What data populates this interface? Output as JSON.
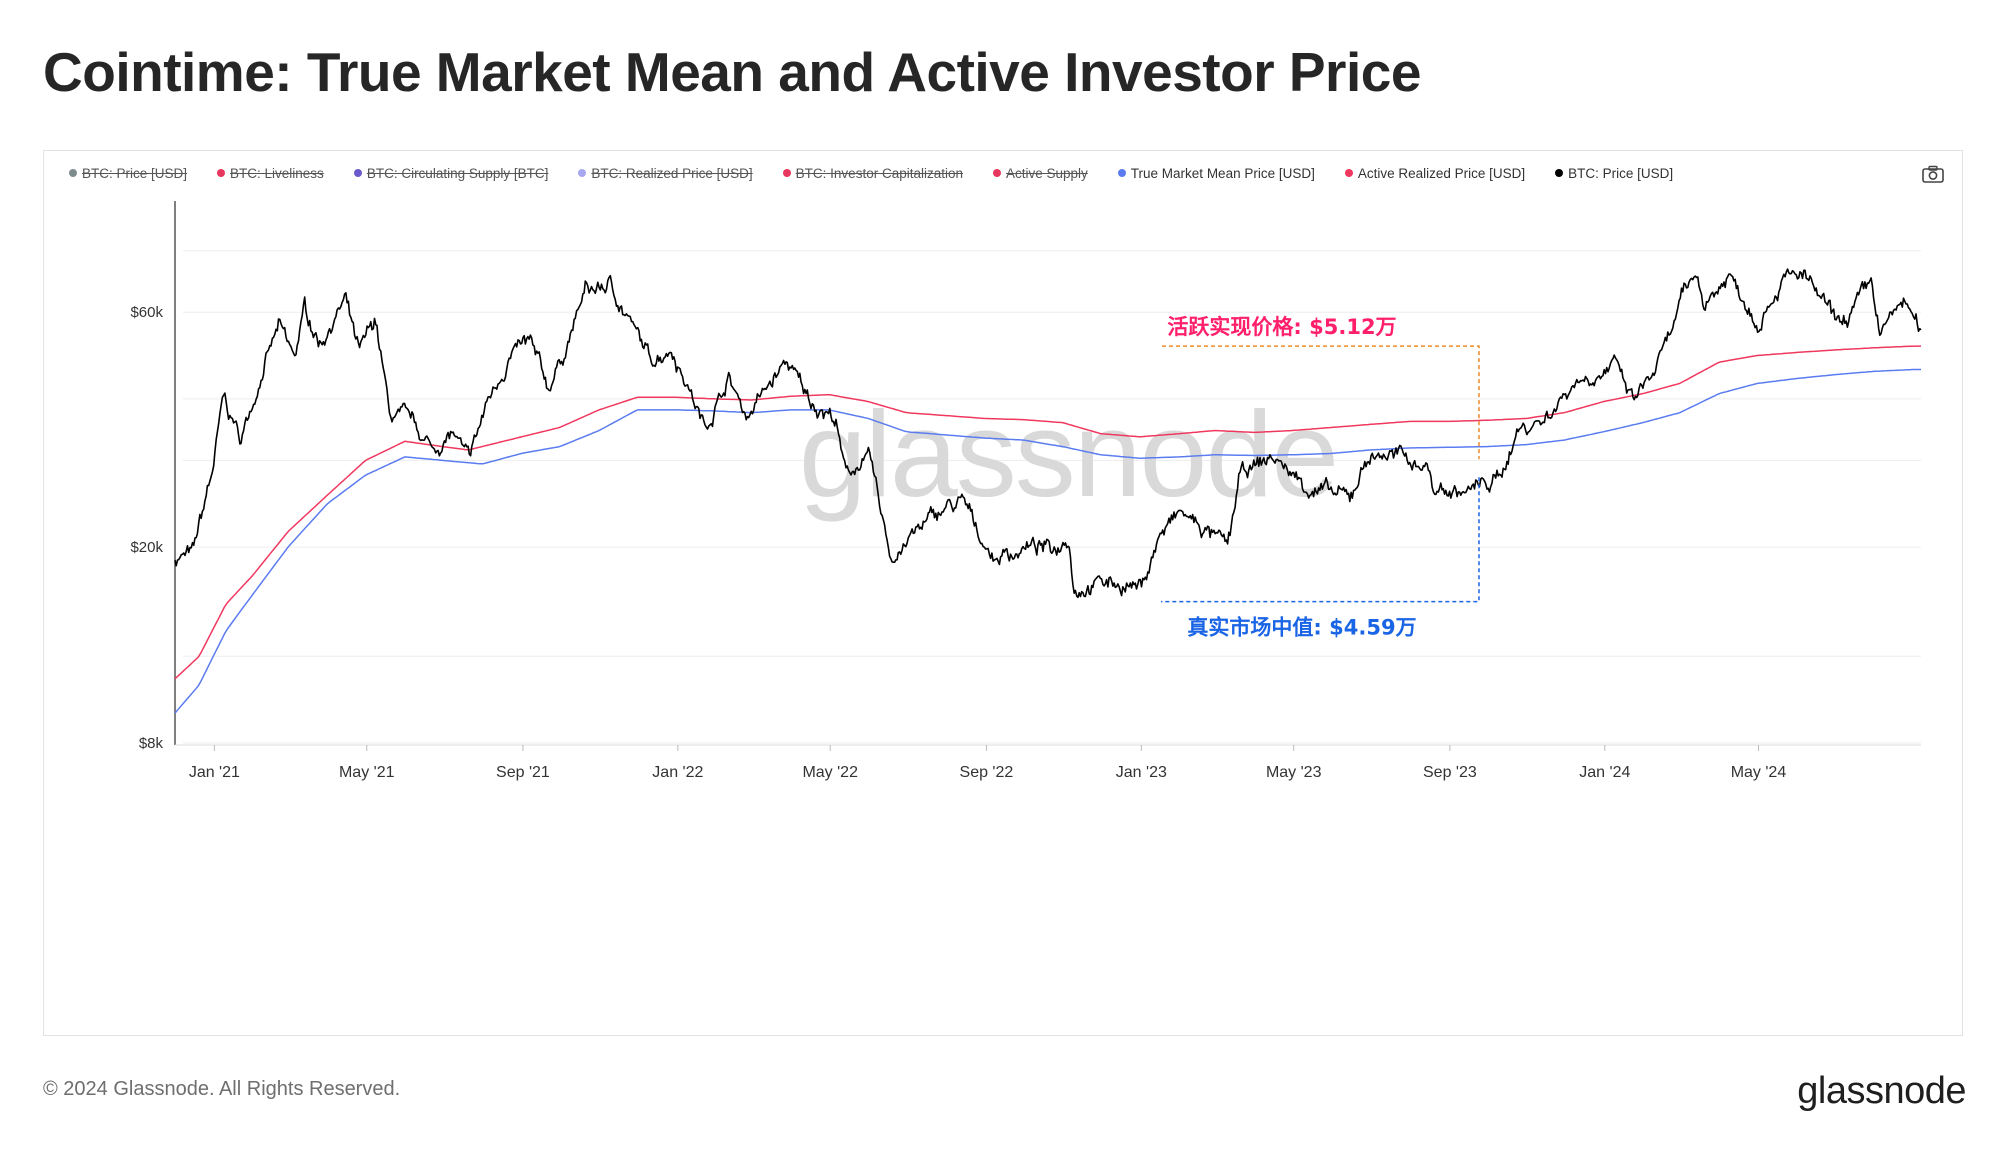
{
  "title": "Cointime: True Market Mean and Active Investor Price",
  "legend": [
    {
      "label": "BTC: Price [USD]",
      "color": "#7f8c8d",
      "enabled": false
    },
    {
      "label": "BTC: Liveliness",
      "color": "#e8375f",
      "enabled": false
    },
    {
      "label": "BTC: Circulating Supply [BTC]",
      "color": "#6a5acd",
      "enabled": false
    },
    {
      "label": "BTC: Realized Price [USD]",
      "color": "#a8a8f0",
      "enabled": false
    },
    {
      "label": "BTC: Investor Capitalization",
      "color": "#e8375f",
      "enabled": false
    },
    {
      "label": "Active Supply",
      "color": "#e8375f",
      "enabled": false
    },
    {
      "label": "True Market Mean Price [USD]",
      "color": "#5b7cf0",
      "enabled": true
    },
    {
      "label": "Active Realized Price [USD]",
      "color": "#f0385f",
      "enabled": true
    },
    {
      "label": "BTC: Price [USD]",
      "color": "#000000",
      "enabled": true
    }
  ],
  "icons": {
    "camera": "camera-icon"
  },
  "annotations": {
    "active_realized": "活跃实现价格: $5.12万",
    "true_market_mean": "真实市场中值: $4.59万",
    "active_realized_color": "#ff1f6b",
    "true_market_mean_color": "#1a64e6"
  },
  "watermark": "glassnode",
  "footer": {
    "copyright": "© 2024 Glassnode. All Rights Reserved.",
    "logo": "glassnode"
  },
  "chart_data": {
    "type": "line",
    "title": "Cointime: True Market Mean and Active Investor Price",
    "x_ticks": [
      "Jan '21",
      "May '21",
      "Sep '21",
      "Jan '22",
      "May '22",
      "Sep '22",
      "Jan '23",
      "May '23",
      "Sep '23",
      "Jan '24",
      "May '24"
    ],
    "y_ticks": [
      "$8k",
      "$20k",
      "$60k"
    ],
    "y_scale": "log",
    "ylim": [
      8000,
      100000
    ],
    "grid": true,
    "x_range": [
      "2020-12-01",
      "2024-09-06"
    ],
    "series": [
      {
        "name": "BTC: Price [USD]",
        "color": "#000000",
        "points": [
          [
            "2020-12-01",
            19000
          ],
          [
            "2020-12-15",
            19300
          ],
          [
            "2020-12-31",
            29000
          ],
          [
            "2021-01-08",
            40000
          ],
          [
            "2021-01-22",
            33000
          ],
          [
            "2021-02-08",
            46000
          ],
          [
            "2021-02-21",
            56000
          ],
          [
            "2021-03-05",
            48000
          ],
          [
            "2021-03-13",
            61000
          ],
          [
            "2021-03-25",
            52000
          ],
          [
            "2021-04-14",
            63500
          ],
          [
            "2021-04-25",
            49000
          ],
          [
            "2021-05-08",
            58000
          ],
          [
            "2021-05-19",
            37000
          ],
          [
            "2021-06-05",
            36000
          ],
          [
            "2021-06-22",
            31500
          ],
          [
            "2021-07-08",
            34000
          ],
          [
            "2021-07-20",
            29800
          ],
          [
            "2021-08-05",
            40000
          ],
          [
            "2021-08-22",
            49000
          ],
          [
            "2021-09-06",
            52000
          ],
          [
            "2021-09-21",
            42000
          ],
          [
            "2021-10-05",
            51000
          ],
          [
            "2021-10-20",
            66000
          ],
          [
            "2021-11-09",
            68000
          ],
          [
            "2021-11-25",
            57000
          ],
          [
            "2021-12-10",
            48000
          ],
          [
            "2021-12-27",
            51000
          ],
          [
            "2022-01-10",
            42000
          ],
          [
            "2022-01-22",
            35000
          ],
          [
            "2022-02-10",
            44000
          ],
          [
            "2022-02-24",
            37000
          ],
          [
            "2022-03-28",
            47500
          ],
          [
            "2022-04-14",
            40000
          ],
          [
            "2022-05-05",
            36500
          ],
          [
            "2022-05-12",
            28500
          ],
          [
            "2022-06-01",
            30000
          ],
          [
            "2022-06-18",
            19000
          ],
          [
            "2022-07-08",
            21500
          ],
          [
            "2022-07-30",
            24000
          ],
          [
            "2022-08-14",
            24500
          ],
          [
            "2022-09-06",
            19000
          ],
          [
            "2022-10-05",
            20000
          ],
          [
            "2022-10-25",
            19800
          ],
          [
            "2022-11-05",
            21300
          ],
          [
            "2022-11-09",
            16500
          ],
          [
            "2022-12-01",
            17000
          ],
          [
            "2022-12-20",
            16800
          ],
          [
            "2023-01-01",
            16600
          ],
          [
            "2023-01-15",
            21000
          ],
          [
            "2023-02-01",
            23500
          ],
          [
            "2023-03-10",
            20000
          ],
          [
            "2023-03-20",
            28000
          ],
          [
            "2023-04-14",
            30500
          ],
          [
            "2023-05-12",
            26500
          ],
          [
            "2023-06-14",
            25000
          ],
          [
            "2023-06-28",
            30500
          ],
          [
            "2023-07-14",
            31000
          ],
          [
            "2023-08-15",
            29300
          ],
          [
            "2023-08-18",
            26200
          ],
          [
            "2023-09-12",
            25800
          ],
          [
            "2023-10-10",
            27500
          ],
          [
            "2023-10-24",
            34500
          ],
          [
            "2023-11-15",
            36500
          ],
          [
            "2023-12-08",
            43500
          ],
          [
            "2024-01-10",
            46500
          ],
          [
            "2024-01-23",
            39500
          ],
          [
            "2024-02-08",
            45000
          ],
          [
            "2024-02-20",
            52000
          ],
          [
            "2024-02-29",
            62000
          ],
          [
            "2024-03-13",
            72000
          ],
          [
            "2024-03-20",
            62500
          ],
          [
            "2024-04-08",
            71500
          ],
          [
            "2024-04-30",
            58000
          ],
          [
            "2024-05-20",
            70000
          ],
          [
            "2024-06-06",
            71000
          ],
          [
            "2024-06-24",
            60500
          ],
          [
            "2024-07-05",
            56000
          ],
          [
            "2024-07-29",
            68500
          ],
          [
            "2024-08-05",
            54000
          ],
          [
            "2024-08-24",
            64000
          ],
          [
            "2024-09-06",
            53500
          ]
        ]
      },
      {
        "name": "Active Realized Price [USD]",
        "color": "#f0385f",
        "points": [
          [
            "2020-12-01",
            10800
          ],
          [
            "2020-12-20",
            12000
          ],
          [
            "2021-01-10",
            15300
          ],
          [
            "2021-01-31",
            17500
          ],
          [
            "2021-02-28",
            21500
          ],
          [
            "2021-03-31",
            25500
          ],
          [
            "2021-04-30",
            30000
          ],
          [
            "2021-05-31",
            32800
          ],
          [
            "2021-06-30",
            32000
          ],
          [
            "2021-07-20",
            31500
          ],
          [
            "2021-08-31",
            33500
          ],
          [
            "2021-09-30",
            35000
          ],
          [
            "2021-10-31",
            38000
          ],
          [
            "2021-11-30",
            40300
          ],
          [
            "2021-12-31",
            40300
          ],
          [
            "2022-01-31",
            40000
          ],
          [
            "2022-02-28",
            39800
          ],
          [
            "2022-03-31",
            40500
          ],
          [
            "2022-04-30",
            40800
          ],
          [
            "2022-05-31",
            39500
          ],
          [
            "2022-06-30",
            37500
          ],
          [
            "2022-07-31",
            37000
          ],
          [
            "2022-08-31",
            36500
          ],
          [
            "2022-09-30",
            36300
          ],
          [
            "2022-10-31",
            35800
          ],
          [
            "2022-11-30",
            34000
          ],
          [
            "2022-12-31",
            33500
          ],
          [
            "2023-01-31",
            34000
          ],
          [
            "2023-02-28",
            34500
          ],
          [
            "2023-03-31",
            34200
          ],
          [
            "2023-04-30",
            34500
          ],
          [
            "2023-05-31",
            35000
          ],
          [
            "2023-06-30",
            35500
          ],
          [
            "2023-07-31",
            36000
          ],
          [
            "2023-08-31",
            36000
          ],
          [
            "2023-09-30",
            36200
          ],
          [
            "2023-10-31",
            36500
          ],
          [
            "2023-11-30",
            37500
          ],
          [
            "2023-12-31",
            39500
          ],
          [
            "2024-01-31",
            41000
          ],
          [
            "2024-02-29",
            43000
          ],
          [
            "2024-03-31",
            47500
          ],
          [
            "2024-04-30",
            49000
          ],
          [
            "2024-05-31",
            49700
          ],
          [
            "2024-06-30",
            50300
          ],
          [
            "2024-07-31",
            50800
          ],
          [
            "2024-08-31",
            51200
          ],
          [
            "2024-09-06",
            51200
          ]
        ]
      },
      {
        "name": "True Market Mean Price [USD]",
        "color": "#5b7cf0",
        "points": [
          [
            "2020-12-01",
            9200
          ],
          [
            "2020-12-20",
            10500
          ],
          [
            "2021-01-10",
            13500
          ],
          [
            "2021-01-31",
            16000
          ],
          [
            "2021-02-28",
            20000
          ],
          [
            "2021-03-31",
            24500
          ],
          [
            "2021-04-30",
            28000
          ],
          [
            "2021-05-31",
            30500
          ],
          [
            "2021-06-30",
            30000
          ],
          [
            "2021-07-31",
            29500
          ],
          [
            "2021-08-31",
            31000
          ],
          [
            "2021-09-30",
            32000
          ],
          [
            "2021-10-31",
            34500
          ],
          [
            "2021-11-30",
            38000
          ],
          [
            "2021-12-31",
            38000
          ],
          [
            "2022-01-31",
            37800
          ],
          [
            "2022-02-28",
            37500
          ],
          [
            "2022-03-31",
            38000
          ],
          [
            "2022-04-30",
            38000
          ],
          [
            "2022-05-31",
            36500
          ],
          [
            "2022-06-30",
            34300
          ],
          [
            "2022-07-31",
            33800
          ],
          [
            "2022-08-31",
            33300
          ],
          [
            "2022-09-30",
            33000
          ],
          [
            "2022-10-31",
            32000
          ],
          [
            "2022-11-30",
            30800
          ],
          [
            "2022-12-31",
            30300
          ],
          [
            "2023-01-31",
            30500
          ],
          [
            "2023-02-28",
            30800
          ],
          [
            "2023-03-31",
            30700
          ],
          [
            "2023-04-30",
            30800
          ],
          [
            "2023-05-31",
            31000
          ],
          [
            "2023-06-30",
            31500
          ],
          [
            "2023-07-31",
            31800
          ],
          [
            "2023-08-31",
            31900
          ],
          [
            "2023-09-30",
            32000
          ],
          [
            "2023-10-31",
            32300
          ],
          [
            "2023-11-30",
            33000
          ],
          [
            "2023-12-31",
            34300
          ],
          [
            "2024-01-31",
            35800
          ],
          [
            "2024-02-29",
            37500
          ],
          [
            "2024-03-31",
            41000
          ],
          [
            "2024-04-30",
            43000
          ],
          [
            "2024-05-31",
            44000
          ],
          [
            "2024-06-30",
            44800
          ],
          [
            "2024-07-31",
            45500
          ],
          [
            "2024-08-31",
            45900
          ],
          [
            "2024-09-06",
            45900
          ]
        ]
      }
    ]
  }
}
